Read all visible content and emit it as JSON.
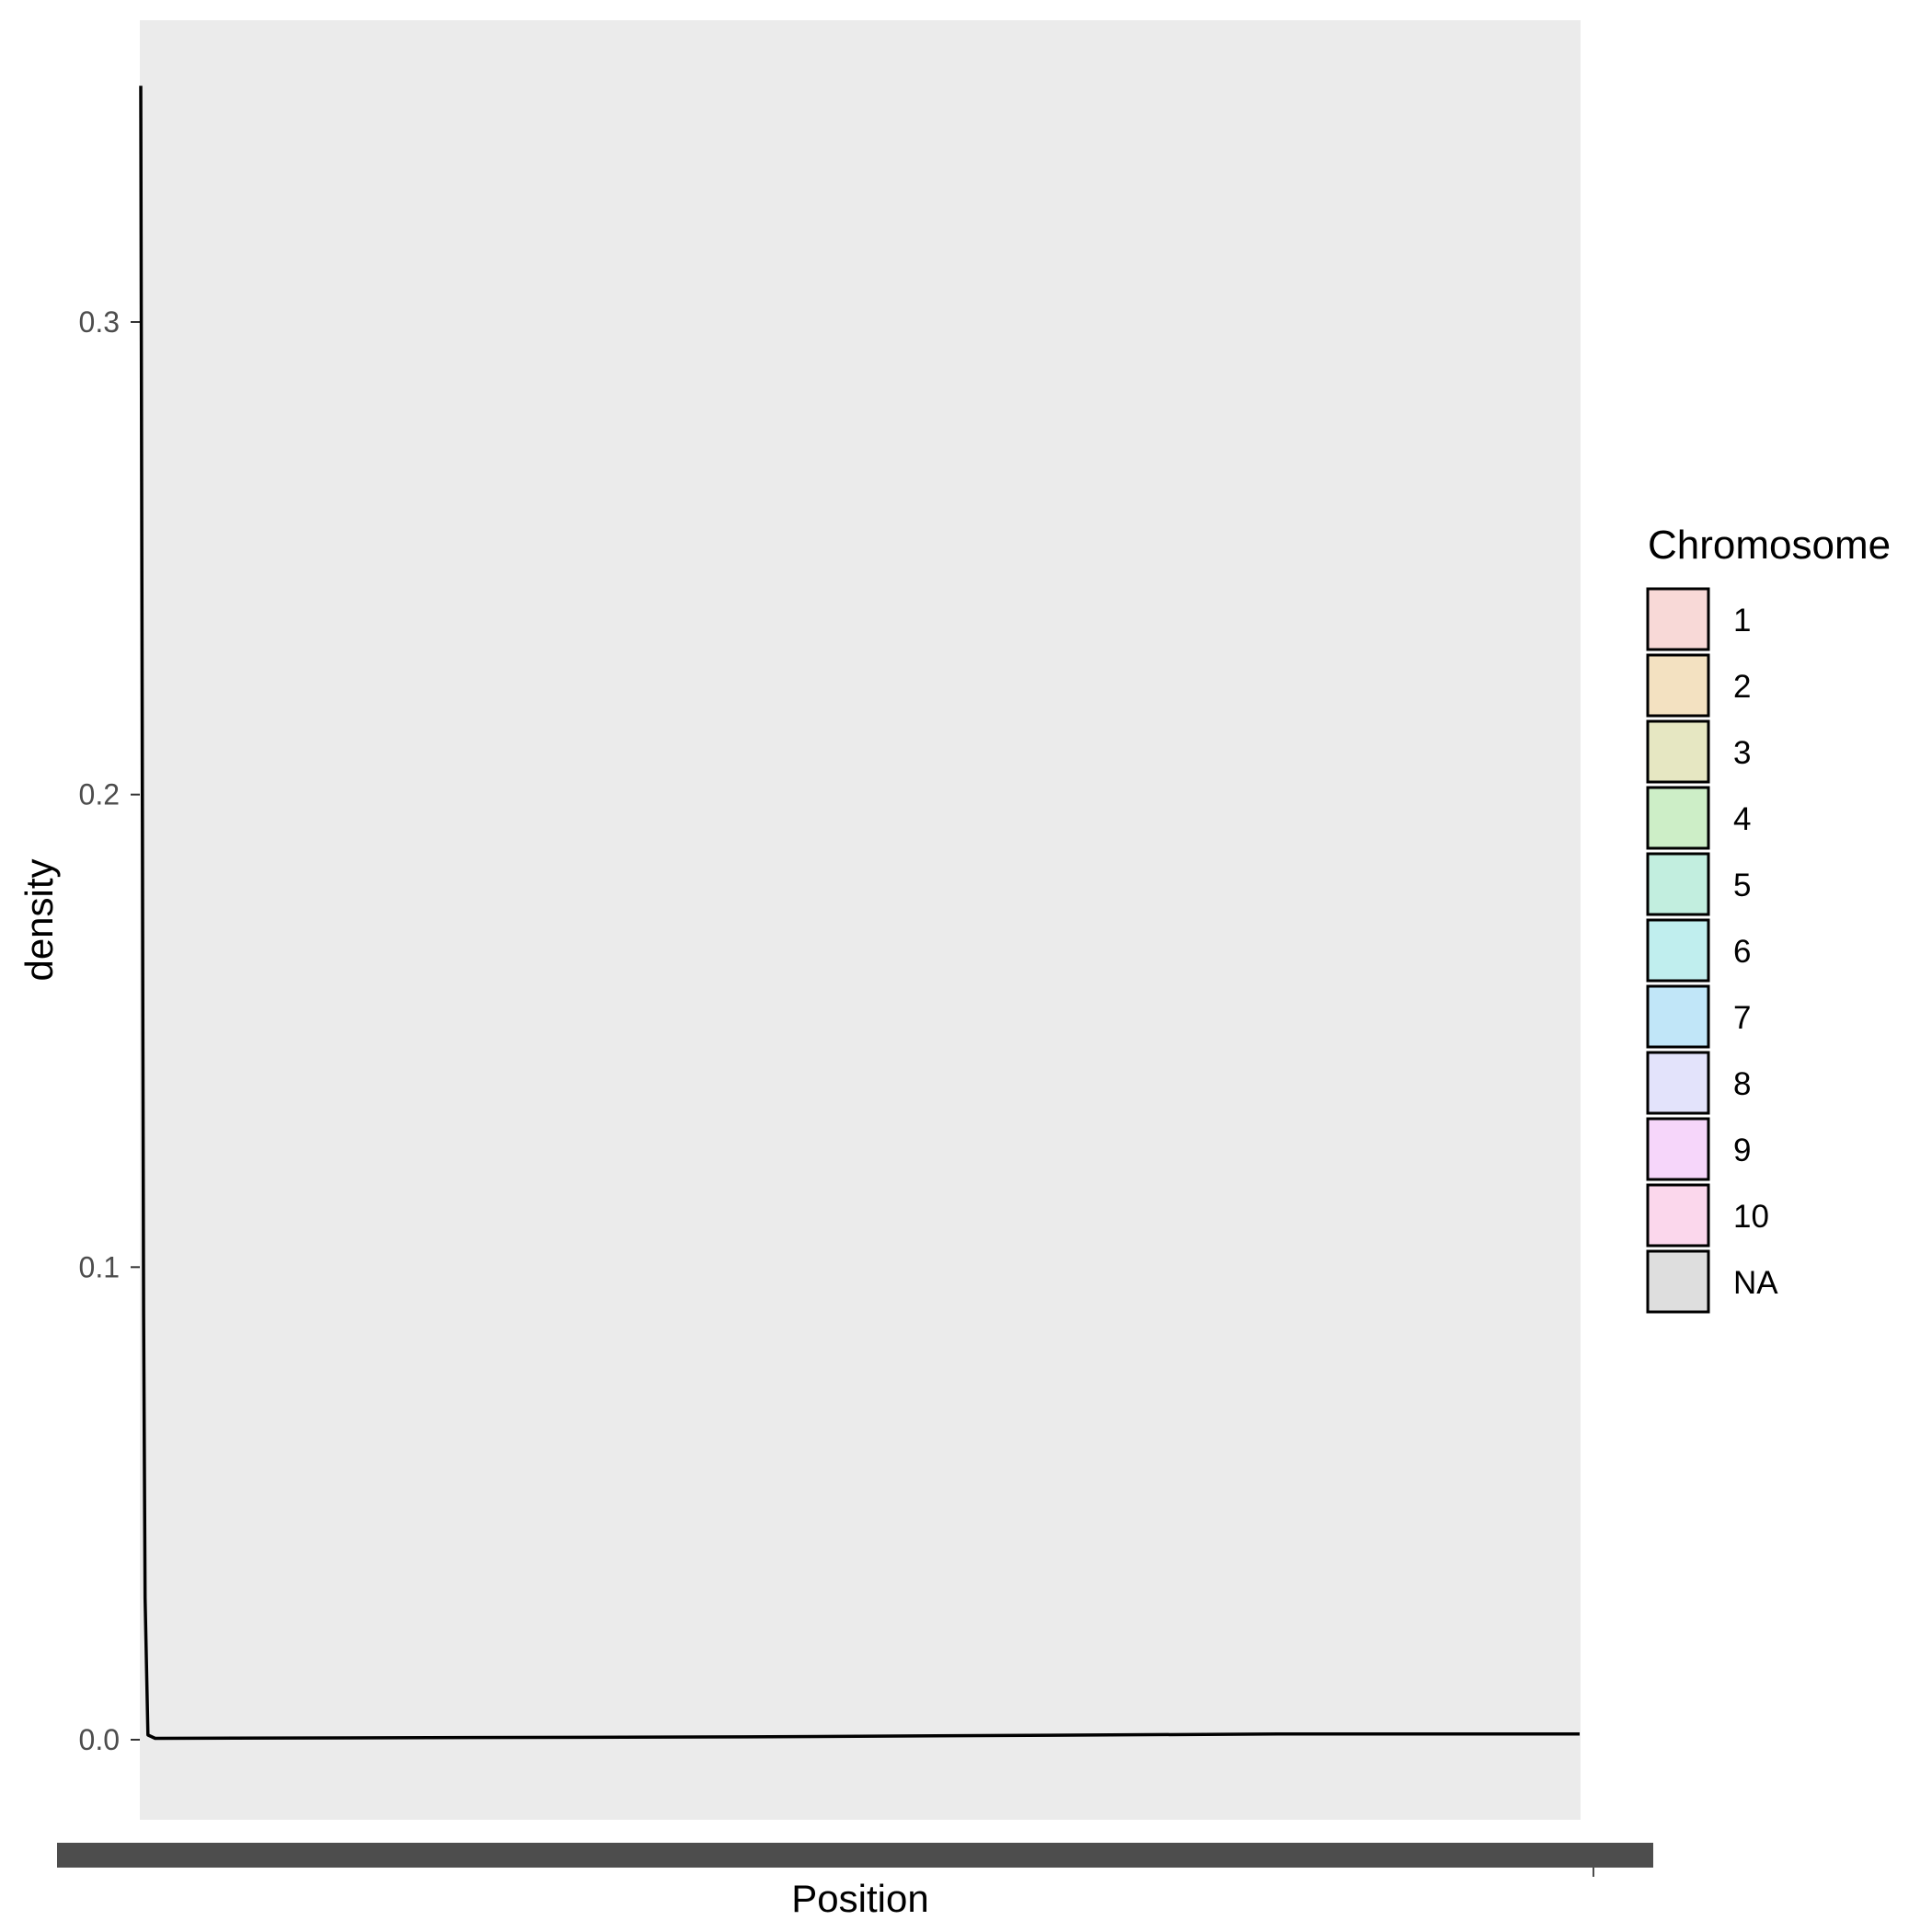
{
  "chart_data": {
    "type": "area",
    "xlabel": "Position",
    "ylabel": "density",
    "ylim": [
      0,
      0.35
    ],
    "y_ticks": [
      0.0,
      0.1,
      0.2,
      0.3
    ],
    "y_tick_labels": [
      "0.0",
      "0.1",
      "0.2",
      "0.3"
    ],
    "x_tick_labels_note": "",
    "grid": false,
    "panel_background": "#ebebeb",
    "line_color": "#000000",
    "series": [
      {
        "name": "",
        "x": [
          0,
          0.0005,
          0.001,
          0.0015,
          0.002,
          0.003,
          0.005,
          0.01,
          0.42,
          0.6,
          0.79,
          1.0
        ],
        "values": [
          0.35,
          0.28,
          0.215,
          0.15,
          0.09,
          0.03,
          0.001,
          0.0003,
          0.0006,
          0.0009,
          0.0012,
          0.0012
        ]
      }
    ],
    "legend": {
      "title": "Chromosome",
      "placement": "right",
      "items": [
        {
          "label": "1",
          "color": "#f8d9d7"
        },
        {
          "label": "2",
          "color": "#f3e1c1"
        },
        {
          "label": "3",
          "color": "#e6e7c2"
        },
        {
          "label": "4",
          "color": "#cdeec7"
        },
        {
          "label": "5",
          "color": "#c2eedf"
        },
        {
          "label": "6",
          "color": "#c0eeee"
        },
        {
          "label": "7",
          "color": "#c1e6f8"
        },
        {
          "label": "8",
          "color": "#e3e3fb"
        },
        {
          "label": "9",
          "color": "#f6d6fa"
        },
        {
          "label": "10",
          "color": "#fbd7ec"
        },
        {
          "label": "NA",
          "color": "#dedede"
        }
      ]
    }
  }
}
